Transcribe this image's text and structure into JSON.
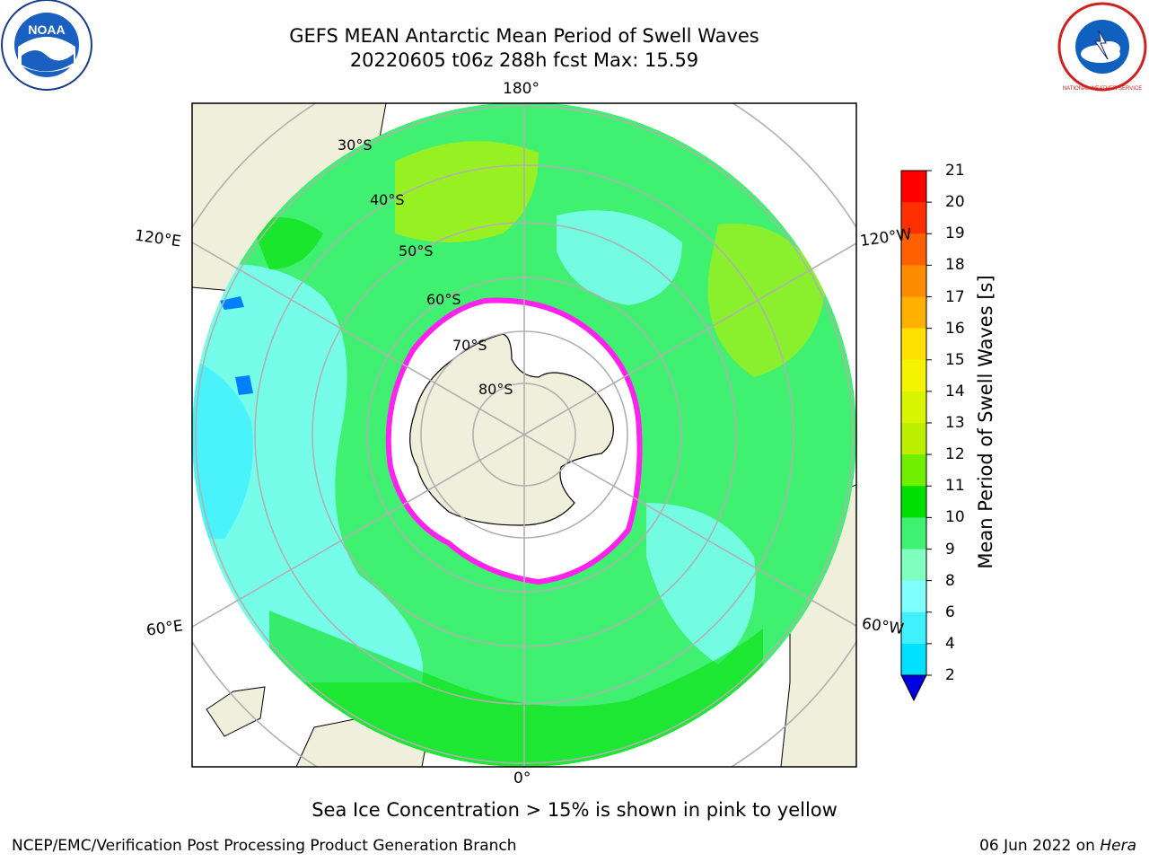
{
  "header": {
    "title_line1": "GEFS MEAN Antarctic Mean Period of Swell Waves",
    "title_line2": "20220605 t06z 288h fcst   Max: 15.59"
  },
  "logos": {
    "noaa_text": "NOAA",
    "nws_text": "NATIONAL WEATHER SERVICE"
  },
  "map": {
    "longitude_labels": {
      "top": "180°",
      "bottom": "0°",
      "upper_left": "120°E",
      "upper_right": "120°W",
      "lower_left": "60°E",
      "lower_right": "60°W"
    },
    "latitude_labels": [
      "30°S",
      "40°S",
      "50°S",
      "60°S",
      "70°S",
      "80°S"
    ],
    "colors": {
      "land": "#efefdc",
      "ice_free": "#ffffff",
      "sea_ice": "#ff22ee",
      "grid": "#b0b0b0"
    }
  },
  "colorbar": {
    "label": "Mean Period of Swell Waves [s]",
    "ticks": [
      "21",
      "20",
      "19",
      "18",
      "17",
      "16",
      "15",
      "14",
      "13",
      "12",
      "11",
      "10",
      "9",
      "8",
      "6",
      "4",
      "2"
    ],
    "colors": [
      "#ff0000",
      "#ff3000",
      "#ff6000",
      "#ff8c00",
      "#ffb000",
      "#ffe000",
      "#f4f400",
      "#d8f400",
      "#bcf000",
      "#70f000",
      "#00e000",
      "#40f070",
      "#80ffc0",
      "#80ffff",
      "#40f0ff",
      "#00e0ff",
      "#0080ff",
      "#0000e0"
    ]
  },
  "subtitle": "Sea Ice Concentration > 15% is shown in pink to yellow",
  "footer": {
    "left": "NCEP/EMC/Verification Post Processing Product Generation Branch",
    "date": "06 Jun 2022 on ",
    "machine": "Hera"
  }
}
